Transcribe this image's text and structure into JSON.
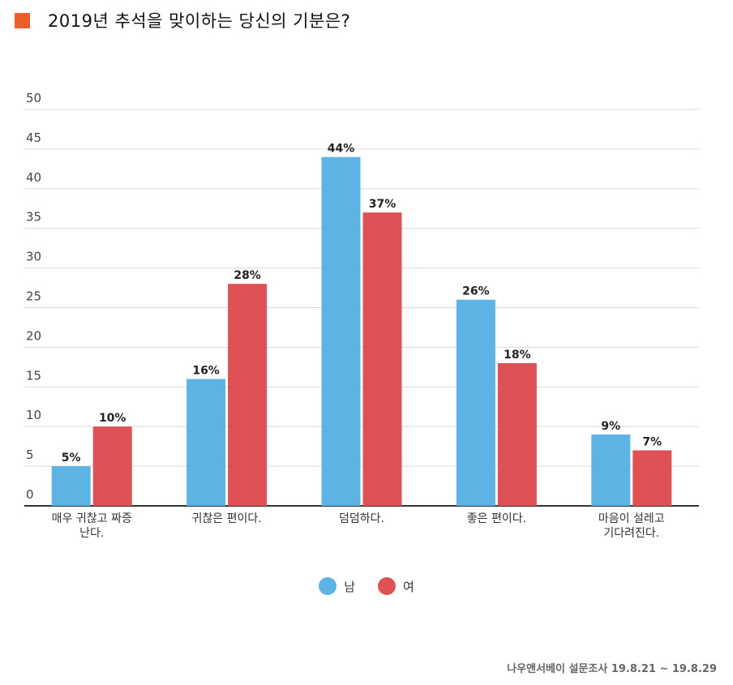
{
  "title": "2019년 추석을 맞이하는 당신의 기분은?",
  "colors": {
    "accent": "#ED5F2A",
    "male": "#5DB4E4",
    "female": "#DE5256"
  },
  "legend": {
    "male": "남",
    "female": "여"
  },
  "source": "나우앤서베이 설문조사 19.8.21 ~ 19.8.29",
  "chart_data": {
    "type": "bar",
    "title": "2019년 추석을 맞이하는 당신의 기분은?",
    "categories": [
      [
        "매우 귀찮고 짜증",
        "난다."
      ],
      [
        "귀찮은 편이다."
      ],
      [
        "덤덤하다."
      ],
      [
        "좋은 편이다."
      ],
      [
        "마음이 설레고",
        "기다려진다."
      ]
    ],
    "series": [
      {
        "name": "남",
        "values": [
          5,
          16,
          44,
          26,
          9
        ],
        "labels": [
          "5%",
          "16%",
          "44%",
          "26%",
          "9%"
        ]
      },
      {
        "name": "여",
        "values": [
          10,
          28,
          37,
          18,
          7
        ],
        "labels": [
          "10%",
          "28%",
          "37%",
          "18%",
          "7%"
        ]
      }
    ],
    "ylim": [
      0,
      50
    ],
    "yticks": [
      0,
      5,
      10,
      15,
      20,
      25,
      30,
      35,
      40,
      45,
      50
    ],
    "grid": true,
    "legend_position": "bottom"
  }
}
